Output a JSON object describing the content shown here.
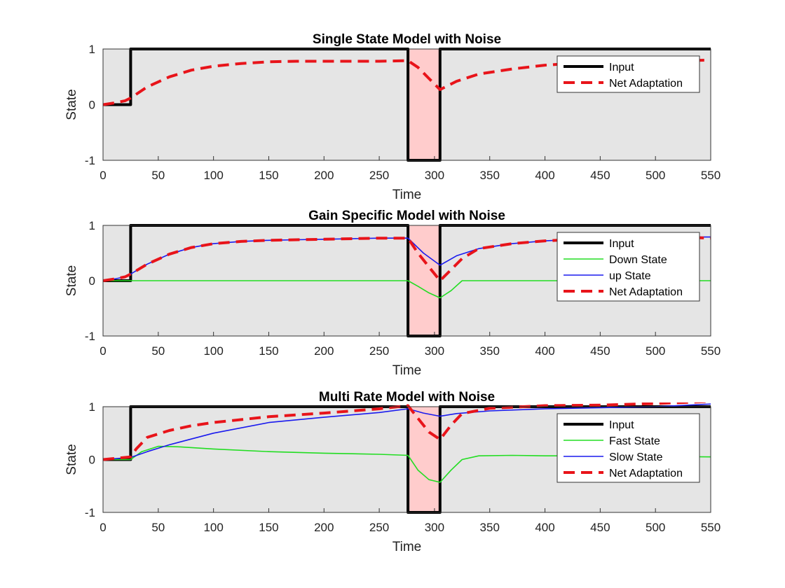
{
  "chart_data": [
    {
      "type": "line",
      "title": "Single State Model with Noise",
      "xlabel": "Time",
      "ylabel": "State",
      "xlim": [
        0,
        550
      ],
      "ylim": [
        -1,
        1
      ],
      "xticks": [
        0,
        50,
        100,
        150,
        200,
        250,
        300,
        350,
        400,
        450,
        500,
        550
      ],
      "yticks": [
        -1,
        0,
        1
      ],
      "grid": false,
      "legend_position": "top-right",
      "shaded_region": {
        "x": [
          276,
          305
        ],
        "color": "#ffcccc"
      },
      "series": [
        {
          "name": "Input",
          "color": "#000000",
          "style": "solid-thick",
          "x": [
            0,
            25,
            25,
            276,
            276,
            305,
            305,
            550
          ],
          "y": [
            0,
            0,
            1,
            1,
            -1,
            -1,
            1,
            1
          ]
        },
        {
          "name": "Net Adaptation",
          "color": "#e8141a",
          "style": "dashed-thick",
          "x": [
            0,
            10,
            20,
            25,
            40,
            60,
            80,
            100,
            125,
            150,
            175,
            200,
            225,
            250,
            276,
            285,
            295,
            305,
            320,
            340,
            370,
            400,
            430,
            460,
            490,
            520,
            550
          ],
          "y": [
            0,
            0.03,
            0.07,
            0.12,
            0.32,
            0.5,
            0.62,
            0.69,
            0.74,
            0.77,
            0.78,
            0.78,
            0.78,
            0.78,
            0.79,
            0.67,
            0.47,
            0.27,
            0.42,
            0.55,
            0.64,
            0.71,
            0.75,
            0.77,
            0.79,
            0.79,
            0.8
          ]
        }
      ]
    },
    {
      "type": "line",
      "title": "Gain Specific Model with Noise",
      "xlabel": "Time",
      "ylabel": "State",
      "xlim": [
        0,
        550
      ],
      "ylim": [
        -1,
        1
      ],
      "xticks": [
        0,
        50,
        100,
        150,
        200,
        250,
        300,
        350,
        400,
        450,
        500,
        550
      ],
      "yticks": [
        -1,
        0,
        1
      ],
      "grid": false,
      "legend_position": "top-right",
      "shaded_region": {
        "x": [
          276,
          305
        ],
        "color": "#ffcccc"
      },
      "series": [
        {
          "name": "Input",
          "color": "#000000",
          "style": "solid-thick",
          "x": [
            0,
            25,
            25,
            276,
            276,
            305,
            305,
            550
          ],
          "y": [
            0,
            0,
            1,
            1,
            -1,
            -1,
            1,
            1
          ]
        },
        {
          "name": "Down State",
          "color": "#22dd22",
          "style": "solid",
          "x": [
            0,
            25,
            276,
            285,
            295,
            305,
            315,
            325,
            340,
            400,
            550
          ],
          "y": [
            0,
            0,
            0,
            -0.1,
            -0.22,
            -0.31,
            -0.18,
            0,
            0,
            0,
            0
          ]
        },
        {
          "name": "up State",
          "color": "#1a1aee",
          "style": "solid",
          "x": [
            0,
            10,
            20,
            25,
            40,
            60,
            80,
            100,
            125,
            150,
            175,
            200,
            225,
            250,
            276,
            290,
            305,
            320,
            340,
            370,
            400,
            430,
            460,
            490,
            520,
            550
          ],
          "y": [
            0,
            0.03,
            0.07,
            0.12,
            0.3,
            0.48,
            0.6,
            0.67,
            0.71,
            0.73,
            0.74,
            0.75,
            0.76,
            0.77,
            0.77,
            0.5,
            0.28,
            0.45,
            0.58,
            0.67,
            0.72,
            0.75,
            0.77,
            0.78,
            0.79,
            0.79
          ]
        },
        {
          "name": "Net Adaptation",
          "color": "#e8141a",
          "style": "dashed-thick",
          "x": [
            0,
            10,
            20,
            25,
            40,
            60,
            80,
            100,
            125,
            150,
            175,
            200,
            225,
            250,
            276,
            285,
            295,
            305,
            315,
            325,
            340,
            370,
            400,
            430,
            460,
            490,
            520,
            550
          ],
          "y": [
            0,
            0.03,
            0.07,
            0.12,
            0.3,
            0.48,
            0.6,
            0.67,
            0.71,
            0.73,
            0.74,
            0.75,
            0.76,
            0.77,
            0.77,
            0.5,
            0.25,
            0.0,
            0.2,
            0.4,
            0.58,
            0.67,
            0.72,
            0.75,
            0.77,
            0.78,
            0.79,
            0.77
          ]
        }
      ]
    },
    {
      "type": "line",
      "title": "Multi Rate Model with Noise",
      "xlabel": "Time",
      "ylabel": "State",
      "xlim": [
        0,
        550
      ],
      "ylim": [
        -1,
        1
      ],
      "xticks": [
        0,
        50,
        100,
        150,
        200,
        250,
        300,
        350,
        400,
        450,
        500,
        550
      ],
      "yticks": [
        -1,
        0,
        1
      ],
      "grid": false,
      "legend_position": "top-right",
      "shaded_region": {
        "x": [
          276,
          305
        ],
        "color": "#ffcccc"
      },
      "series": [
        {
          "name": "Input",
          "color": "#000000",
          "style": "solid-thick",
          "x": [
            0,
            25,
            25,
            276,
            276,
            305,
            305,
            550
          ],
          "y": [
            0,
            0,
            1,
            1,
            -1,
            -1,
            1,
            1
          ]
        },
        {
          "name": "Fast State",
          "color": "#22dd22",
          "style": "solid",
          "x": [
            0,
            25,
            35,
            50,
            70,
            100,
            150,
            200,
            250,
            276,
            285,
            295,
            305,
            315,
            325,
            340,
            370,
            400,
            450,
            500,
            550
          ],
          "y": [
            0,
            0,
            0.15,
            0.25,
            0.24,
            0.2,
            0.15,
            0.12,
            0.1,
            0.08,
            -0.2,
            -0.38,
            -0.43,
            -0.2,
            0,
            0.07,
            0.08,
            0.07,
            0.07,
            0.06,
            0.05
          ]
        },
        {
          "name": "Slow State",
          "color": "#1a1aee",
          "style": "solid",
          "x": [
            0,
            25,
            40,
            60,
            100,
            150,
            200,
            250,
            276,
            290,
            305,
            320,
            350,
            400,
            450,
            500,
            550
          ],
          "y": [
            0,
            0.04,
            0.15,
            0.28,
            0.5,
            0.7,
            0.8,
            0.89,
            0.96,
            0.88,
            0.82,
            0.87,
            0.92,
            0.96,
            0.98,
            1.0,
            1.05
          ]
        },
        {
          "name": "Net Adaptation",
          "color": "#e8141a",
          "style": "dashed-thick",
          "x": [
            0,
            25,
            30,
            40,
            60,
            80,
            100,
            150,
            200,
            250,
            276,
            285,
            295,
            305,
            315,
            325,
            350,
            400,
            450,
            500,
            550
          ],
          "y": [
            0,
            0.05,
            0.2,
            0.42,
            0.55,
            0.64,
            0.7,
            0.81,
            0.88,
            0.96,
            1.02,
            0.78,
            0.52,
            0.38,
            0.65,
            0.87,
            0.97,
            1.02,
            1.03,
            1.06,
            1.1
          ]
        }
      ]
    }
  ]
}
